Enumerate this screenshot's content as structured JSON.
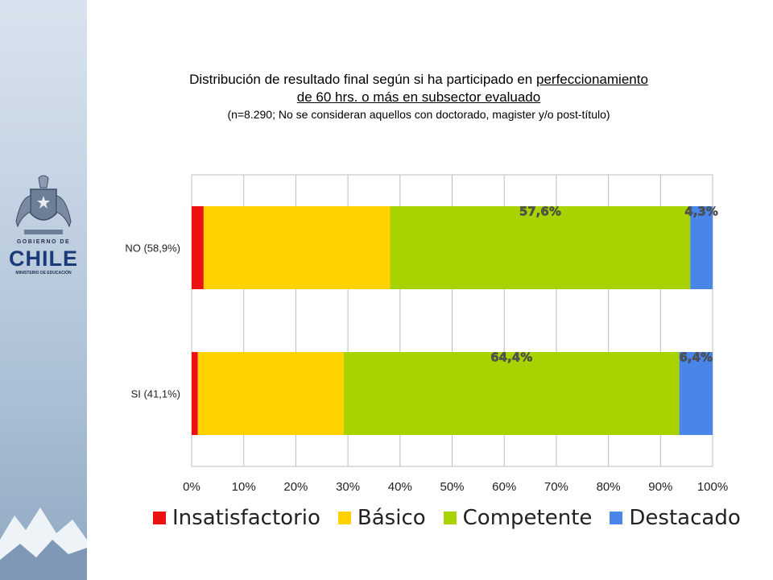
{
  "title": {
    "line1_pre": "Distribución de resultado final según si ha participado en ",
    "line1_underlined": "perfeccionamiento",
    "line2_underlined": "de 60 hrs. o más en subsector evaluado",
    "subtitle": "(n=8.290; No se consideran aquellos con doctorado, magister y/o post-título)"
  },
  "logo": {
    "line1": "GOBIERNO DE",
    "line2": "CHILE",
    "line3": "MINISTERIO DE EDUCACIÓN"
  },
  "chart_data": {
    "type": "bar",
    "orientation": "horizontal",
    "stacked": true,
    "normalized": true,
    "categories": [
      "NO (58,9%)",
      "SI (41,1%)"
    ],
    "series": [
      {
        "name": "Insatisfactorio",
        "color": "#ee1111",
        "values": [
          2.3,
          1.2
        ],
        "label": [
          "",
          ""
        ]
      },
      {
        "name": "Básico",
        "color": "#ffd200",
        "values": [
          35.8,
          28.0
        ],
        "label": [
          "",
          ""
        ]
      },
      {
        "name": "Competente",
        "color": "#a8d300",
        "values": [
          57.6,
          64.4
        ],
        "label": [
          "57,6%",
          "64,4%"
        ]
      },
      {
        "name": "Destacado",
        "color": "#4a86e8",
        "values": [
          4.3,
          6.4
        ],
        "label": [
          "4,3%",
          "6,4%"
        ]
      }
    ],
    "xlim": [
      0,
      100
    ],
    "xticks": [
      "0%",
      "10%",
      "20%",
      "30%",
      "40%",
      "50%",
      "60%",
      "70%",
      "80%",
      "90%",
      "100%"
    ],
    "grid": "vertical",
    "legend": "bottom"
  }
}
